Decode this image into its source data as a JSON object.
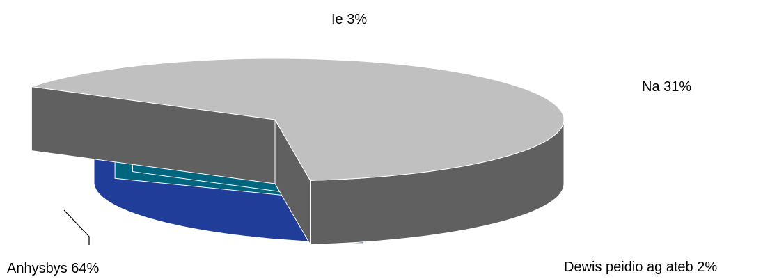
{
  "chart_data": {
    "type": "pie",
    "style": "3d-exploded",
    "title": "",
    "slices": [
      {
        "label": "Ie",
        "value": 3,
        "pct_text": "Ie 3%",
        "color": "#333399",
        "side_color": "#1F1F5C"
      },
      {
        "label": "Na",
        "value": 31,
        "pct_text": "Na 31%",
        "color": "#3366FF",
        "side_color": "#1F3D99"
      },
      {
        "label": "Dewis peidio ag ateb",
        "value": 2,
        "pct_text": "Dewis peidio ag ateb 2%",
        "color": "#00CCFF",
        "side_color": "#006680"
      },
      {
        "label": "Anhysbys",
        "value": 64,
        "pct_text": "Anhysbys 64%",
        "color": "#C0C0C0",
        "side_color": "#606060"
      }
    ]
  }
}
